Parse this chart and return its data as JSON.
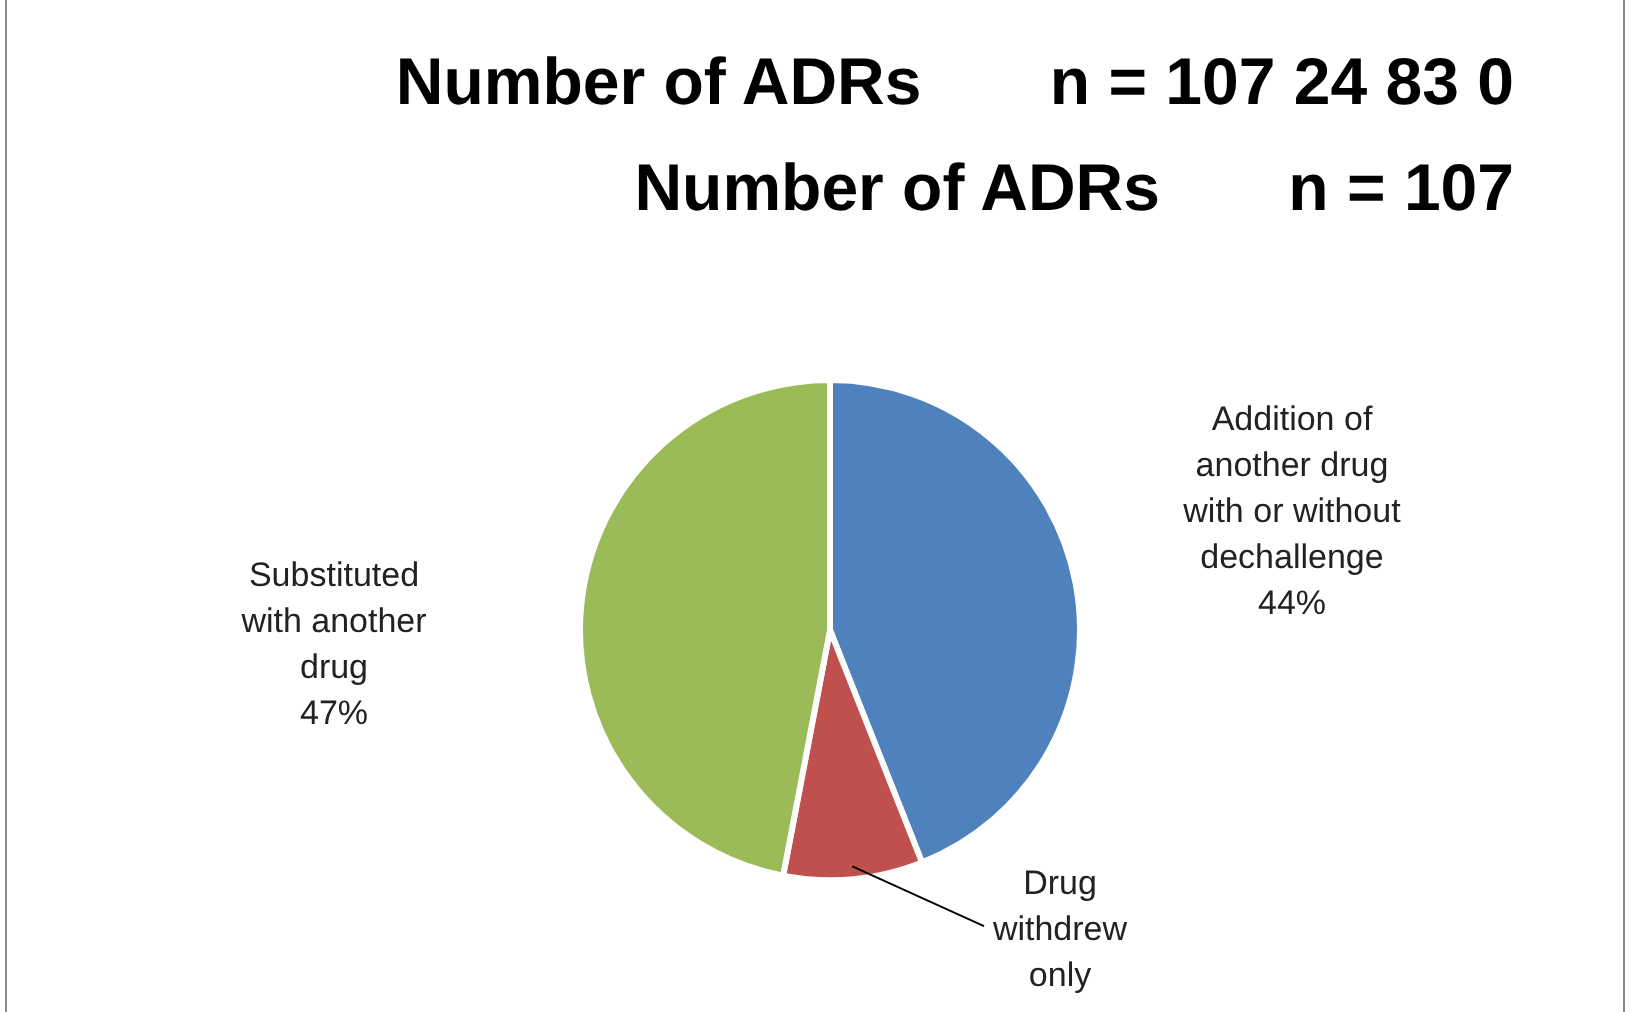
{
  "chart_data": {
    "type": "pie",
    "title": "Number of ADRs       n = 107 24 83 0",
    "subtitle": "Number of ADRs       n = 107",
    "categories": [
      "Addition of another drug with or without dechallenge",
      "Drug withdrew only",
      "Substituted with another drug"
    ],
    "values": [
      44,
      9,
      47
    ],
    "colors": [
      "#4f81bd",
      "#c0504d",
      "#9bbb59"
    ],
    "value_labels": [
      "44%",
      null,
      "47%"
    ]
  }
}
